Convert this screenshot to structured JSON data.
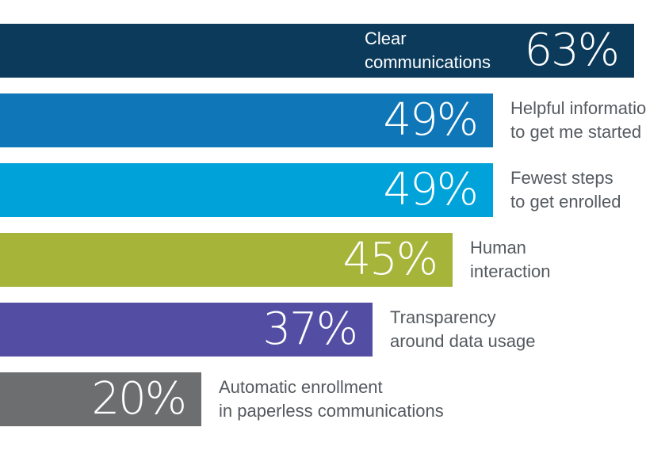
{
  "chart_data": {
    "type": "bar",
    "orientation": "horizontal",
    "title": "",
    "xlabel": "",
    "ylabel": "",
    "xlim": [
      0,
      63
    ],
    "grid": false,
    "categories": [
      [
        "Clear",
        "communications"
      ],
      [
        "Helpful information",
        "to get me started"
      ],
      [
        "Fewest steps",
        "to get enrolled"
      ],
      [
        "Human",
        "interaction"
      ],
      [
        "Transparency",
        "around data usage"
      ],
      [
        "Automatic enrollment",
        "in paperless communications"
      ]
    ],
    "values": [
      63,
      49,
      49,
      45,
      37,
      20
    ],
    "value_labels": [
      "63%",
      "49%",
      "49%",
      "45%",
      "37%",
      "20%"
    ],
    "colors": [
      "#0b3a5b",
      "#0f76b8",
      "#00a3d9",
      "#a6b53a",
      "#534ea3",
      "#6d6e70"
    ]
  }
}
